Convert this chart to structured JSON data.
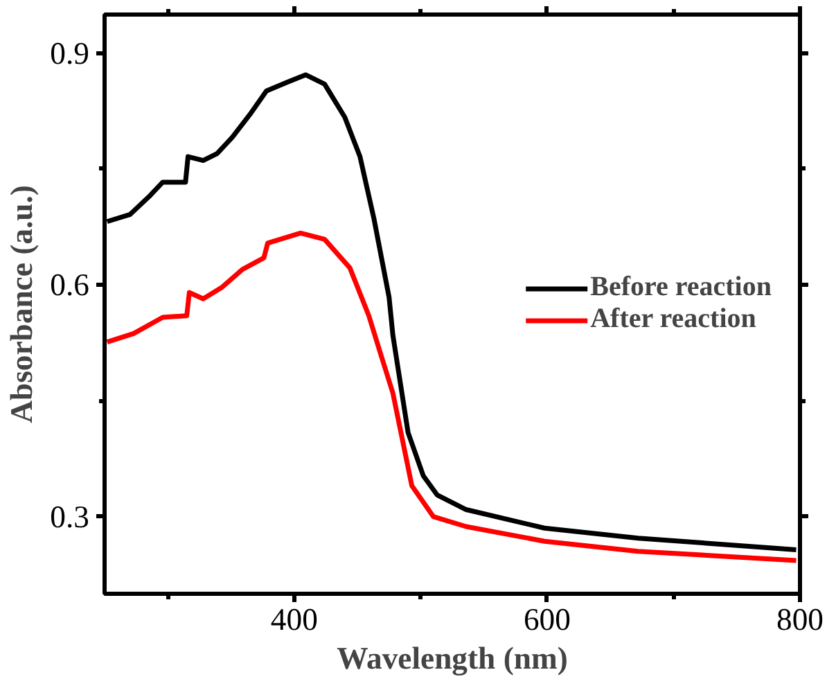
{
  "chart_data": {
    "type": "line",
    "xlabel": "Wavelength (nm)",
    "ylabel": "Absorbance (a.u.)",
    "xlim": [
      250,
      800
    ],
    "ylim": [
      0.2,
      0.95
    ],
    "xticks": [
      {
        "value": 300,
        "label": null
      },
      400,
      {
        "value": 500,
        "label": null
      },
      600,
      {
        "value": 700,
        "label": null
      },
      800
    ],
    "yticks": [
      0.3,
      {
        "value": 0.45,
        "label": null
      },
      0.6,
      {
        "value": 0.75,
        "label": null
      },
      0.9
    ],
    "grid": false,
    "legend": "right",
    "line_style": "solid",
    "marker": "none",
    "series": [
      {
        "name": "Before reaction",
        "color": "#000000",
        "x": [
          252,
          270,
          285,
          296,
          314,
          316,
          328,
          339,
          351,
          366,
          378,
          394,
          409,
          424,
          440,
          452,
          463,
          475,
          478,
          490,
          502,
          513,
          536,
          598,
          672,
          797
        ],
        "values": [
          0.682,
          0.691,
          0.714,
          0.733,
          0.733,
          0.766,
          0.761,
          0.77,
          0.791,
          0.823,
          0.851,
          0.862,
          0.872,
          0.86,
          0.817,
          0.766,
          0.686,
          0.584,
          0.535,
          0.409,
          0.353,
          0.328,
          0.309,
          0.285,
          0.272,
          0.257
        ]
      },
      {
        "name": "After reaction",
        "color": "#ff0000",
        "x": [
          252,
          273,
          296,
          315,
          317,
          328,
          343,
          359,
          376,
          379,
          405,
          424,
          444,
          459,
          469,
          478,
          493,
          510,
          536,
          598,
          672,
          797
        ],
        "values": [
          0.526,
          0.537,
          0.558,
          0.56,
          0.59,
          0.582,
          0.597,
          0.62,
          0.635,
          0.654,
          0.667,
          0.659,
          0.622,
          0.56,
          0.507,
          0.46,
          0.34,
          0.3,
          0.287,
          0.268,
          0.255,
          0.243
        ]
      }
    ]
  }
}
